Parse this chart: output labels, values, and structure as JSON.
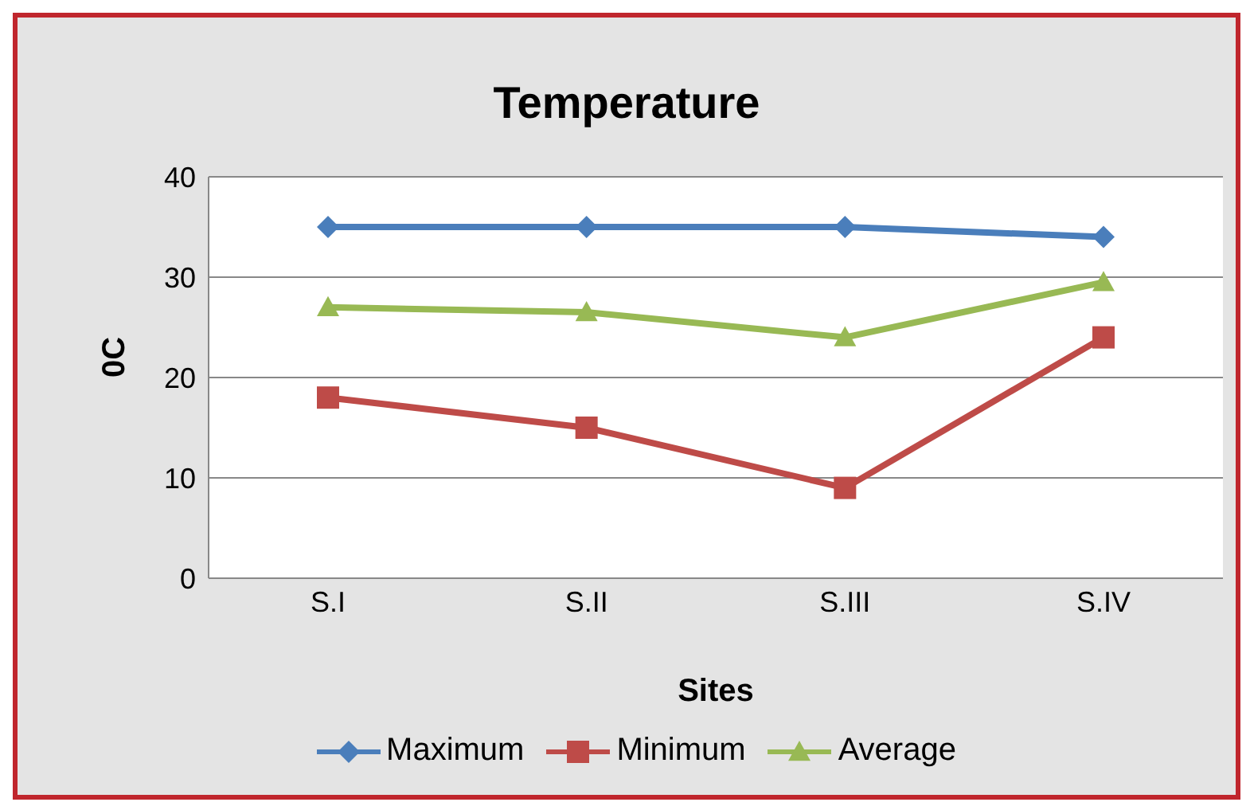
{
  "chart_data": {
    "type": "line",
    "title": "Temperature",
    "xlabel": "Sites",
    "ylabel": "0C",
    "categories": [
      "S.I",
      "S.II",
      "S.III",
      "S.IV"
    ],
    "series": [
      {
        "name": "Maximum",
        "color": "#4a7ebb",
        "marker": "diamond",
        "values": [
          35,
          35,
          35,
          34
        ]
      },
      {
        "name": "Minimum",
        "color": "#be4b48",
        "marker": "square",
        "values": [
          18,
          15,
          9,
          24
        ]
      },
      {
        "name": "Average",
        "color": "#98b954",
        "marker": "triangle",
        "values": [
          27,
          26.5,
          24,
          29.5
        ]
      }
    ],
    "ylim": [
      0,
      40
    ],
    "yticks": [
      0,
      10,
      20,
      30,
      40
    ],
    "grid": "y",
    "legend": "bottom"
  }
}
